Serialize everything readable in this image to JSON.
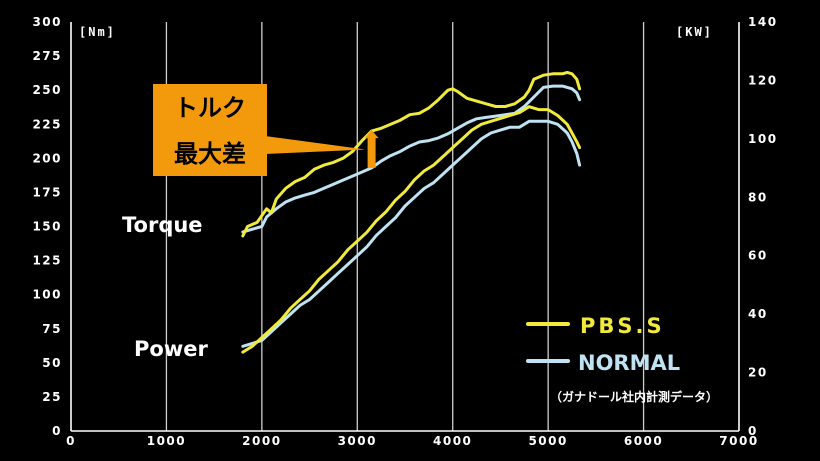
{
  "chart_data": {
    "type": "line",
    "x_ticks": [
      "0",
      "1000",
      "2000",
      "3000",
      "4000",
      "5000",
      "6000",
      "7000"
    ],
    "xlim": [
      0,
      7000
    ],
    "y_left_unit": "[Nm]",
    "y_left_ticks": [
      "0",
      "25",
      "50",
      "75",
      "100",
      "125",
      "150",
      "175",
      "200",
      "225",
      "250",
      "275",
      "300"
    ],
    "y_left_lim": [
      0,
      300
    ],
    "y_right_unit": "[KW]",
    "y_right_ticks": [
      "0",
      "20",
      "40",
      "60",
      "80",
      "100",
      "120",
      "140"
    ],
    "y_right_lim": [
      0,
      140
    ],
    "grid": "vertical",
    "colors": {
      "pbs": "#f2ea3a",
      "normal": "#bfe3f2",
      "callout": "#f39a0c"
    },
    "series_labels": {
      "torque": "Torque",
      "power": "Power"
    },
    "legend": [
      {
        "name": "PBS.S",
        "color_key": "pbs"
      },
      {
        "name": "NORMAL",
        "color_key": "normal"
      }
    ],
    "note": "（ガナドール社内計測データ）",
    "callout": {
      "line1": "トルク",
      "line2": "最大差",
      "target_rpm": 3150
    },
    "series": [
      {
        "name": "PBS.S",
        "metric": "Torque",
        "axis": "left",
        "color_key": "pbs",
        "x": [
          1800,
          1850,
          1950,
          2050,
          2100,
          2150,
          2250,
          2350,
          2450,
          2550,
          2650,
          2750,
          2850,
          2950,
          3050,
          3150,
          3250,
          3350,
          3450,
          3550,
          3650,
          3750,
          3850,
          3950,
          4000,
          4050,
          4150,
          4250,
          4350,
          4450,
          4550,
          4650,
          4750,
          4800,
          4850,
          4950,
          5050,
          5150,
          5200,
          5250,
          5300,
          5330
        ],
        "y": [
          143,
          150,
          153,
          163,
          160,
          170,
          178,
          183,
          186,
          192,
          195,
          197,
          200,
          205,
          213,
          220,
          222,
          225,
          228,
          232,
          233,
          237,
          243,
          250,
          251,
          249,
          244,
          242,
          240,
          238,
          238,
          240,
          245,
          250,
          258,
          261,
          262,
          262,
          263,
          262,
          258,
          251
        ]
      },
      {
        "name": "NORMAL",
        "metric": "Torque",
        "axis": "left",
        "color_key": "normal",
        "x": [
          1800,
          1900,
          2000,
          2050,
          2150,
          2250,
          2350,
          2450,
          2550,
          2650,
          2750,
          2850,
          2950,
          3050,
          3150,
          3250,
          3350,
          3450,
          3550,
          3650,
          3750,
          3850,
          3950,
          4050,
          4150,
          4250,
          4350,
          4450,
          4550,
          4650,
          4750,
          4850,
          4950,
          5050,
          5150,
          5250,
          5300,
          5330
        ],
        "y": [
          146,
          148,
          150,
          157,
          163,
          168,
          171,
          173,
          175,
          178,
          181,
          184,
          187,
          190,
          193,
          198,
          202,
          205,
          209,
          212,
          213,
          215,
          218,
          222,
          226,
          229,
          230,
          231,
          232,
          233,
          238,
          245,
          252,
          253,
          253,
          251,
          248,
          243
        ]
      },
      {
        "name": "PBS.S",
        "metric": "Power",
        "axis": "right",
        "color_key": "pbs",
        "x": [
          1800,
          1900,
          2000,
          2100,
          2200,
          2300,
          2400,
          2500,
          2600,
          2700,
          2800,
          2900,
          3000,
          3100,
          3200,
          3300,
          3400,
          3500,
          3600,
          3700,
          3800,
          3900,
          4000,
          4100,
          4200,
          4300,
          4400,
          4500,
          4600,
          4700,
          4800,
          4900,
          5000,
          5100,
          5200,
          5250,
          5300,
          5330
        ],
        "y": [
          27,
          29,
          32,
          35,
          38,
          42,
          45,
          48,
          52,
          55,
          58,
          62,
          65,
          68,
          72,
          75,
          79,
          82,
          86,
          89,
          91,
          94,
          97,
          100,
          103,
          105,
          106,
          107,
          108,
          109,
          111,
          110,
          110,
          108,
          105,
          102,
          99,
          97
        ]
      },
      {
        "name": "NORMAL",
        "metric": "Power",
        "axis": "right",
        "color_key": "normal",
        "x": [
          1800,
          1900,
          2000,
          2100,
          2200,
          2300,
          2400,
          2500,
          2600,
          2700,
          2800,
          2900,
          3000,
          3100,
          3200,
          3300,
          3400,
          3500,
          3600,
          3700,
          3800,
          3900,
          4000,
          4100,
          4200,
          4300,
          4400,
          4500,
          4600,
          4700,
          4800,
          4900,
          5000,
          5100,
          5200,
          5250,
          5300,
          5330
        ],
        "y": [
          29,
          30,
          31,
          34,
          37,
          40,
          43,
          45,
          48,
          51,
          54,
          57,
          60,
          63,
          67,
          70,
          73,
          77,
          80,
          83,
          85,
          88,
          91,
          94,
          97,
          100,
          102,
          103,
          104,
          104,
          106,
          106,
          106,
          105,
          102,
          99,
          95,
          91
        ]
      }
    ]
  }
}
